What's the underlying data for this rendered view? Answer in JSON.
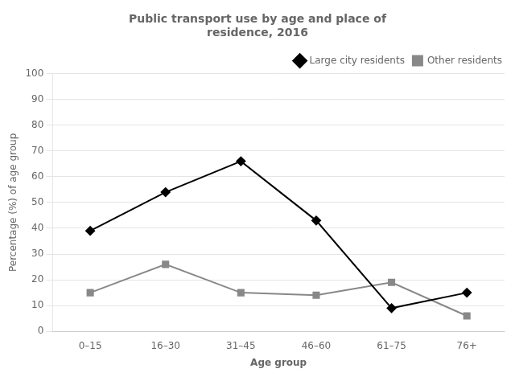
{
  "chart_data": {
    "type": "line",
    "title": "Public transport use by age and place of\nresidence, 2016",
    "x_label": "Age group",
    "y_label": "Percentage (%) of age group",
    "categories": [
      "0–15",
      "16–30",
      "31–45",
      "46–60",
      "61–75",
      "76+"
    ],
    "series": [
      {
        "name": "Large city residents",
        "color": "#000000",
        "marker": "diamond",
        "values": [
          39,
          54,
          66,
          43,
          9,
          15
        ]
      },
      {
        "name": "Other residents",
        "color": "#888888",
        "marker": "square",
        "values": [
          15,
          26,
          15,
          14,
          19,
          6
        ]
      }
    ],
    "ylim": [
      0,
      100
    ],
    "yticks": [
      0,
      10,
      20,
      30,
      40,
      50,
      60,
      70,
      80,
      90,
      100
    ],
    "grid": "y",
    "legend": "upper right"
  }
}
